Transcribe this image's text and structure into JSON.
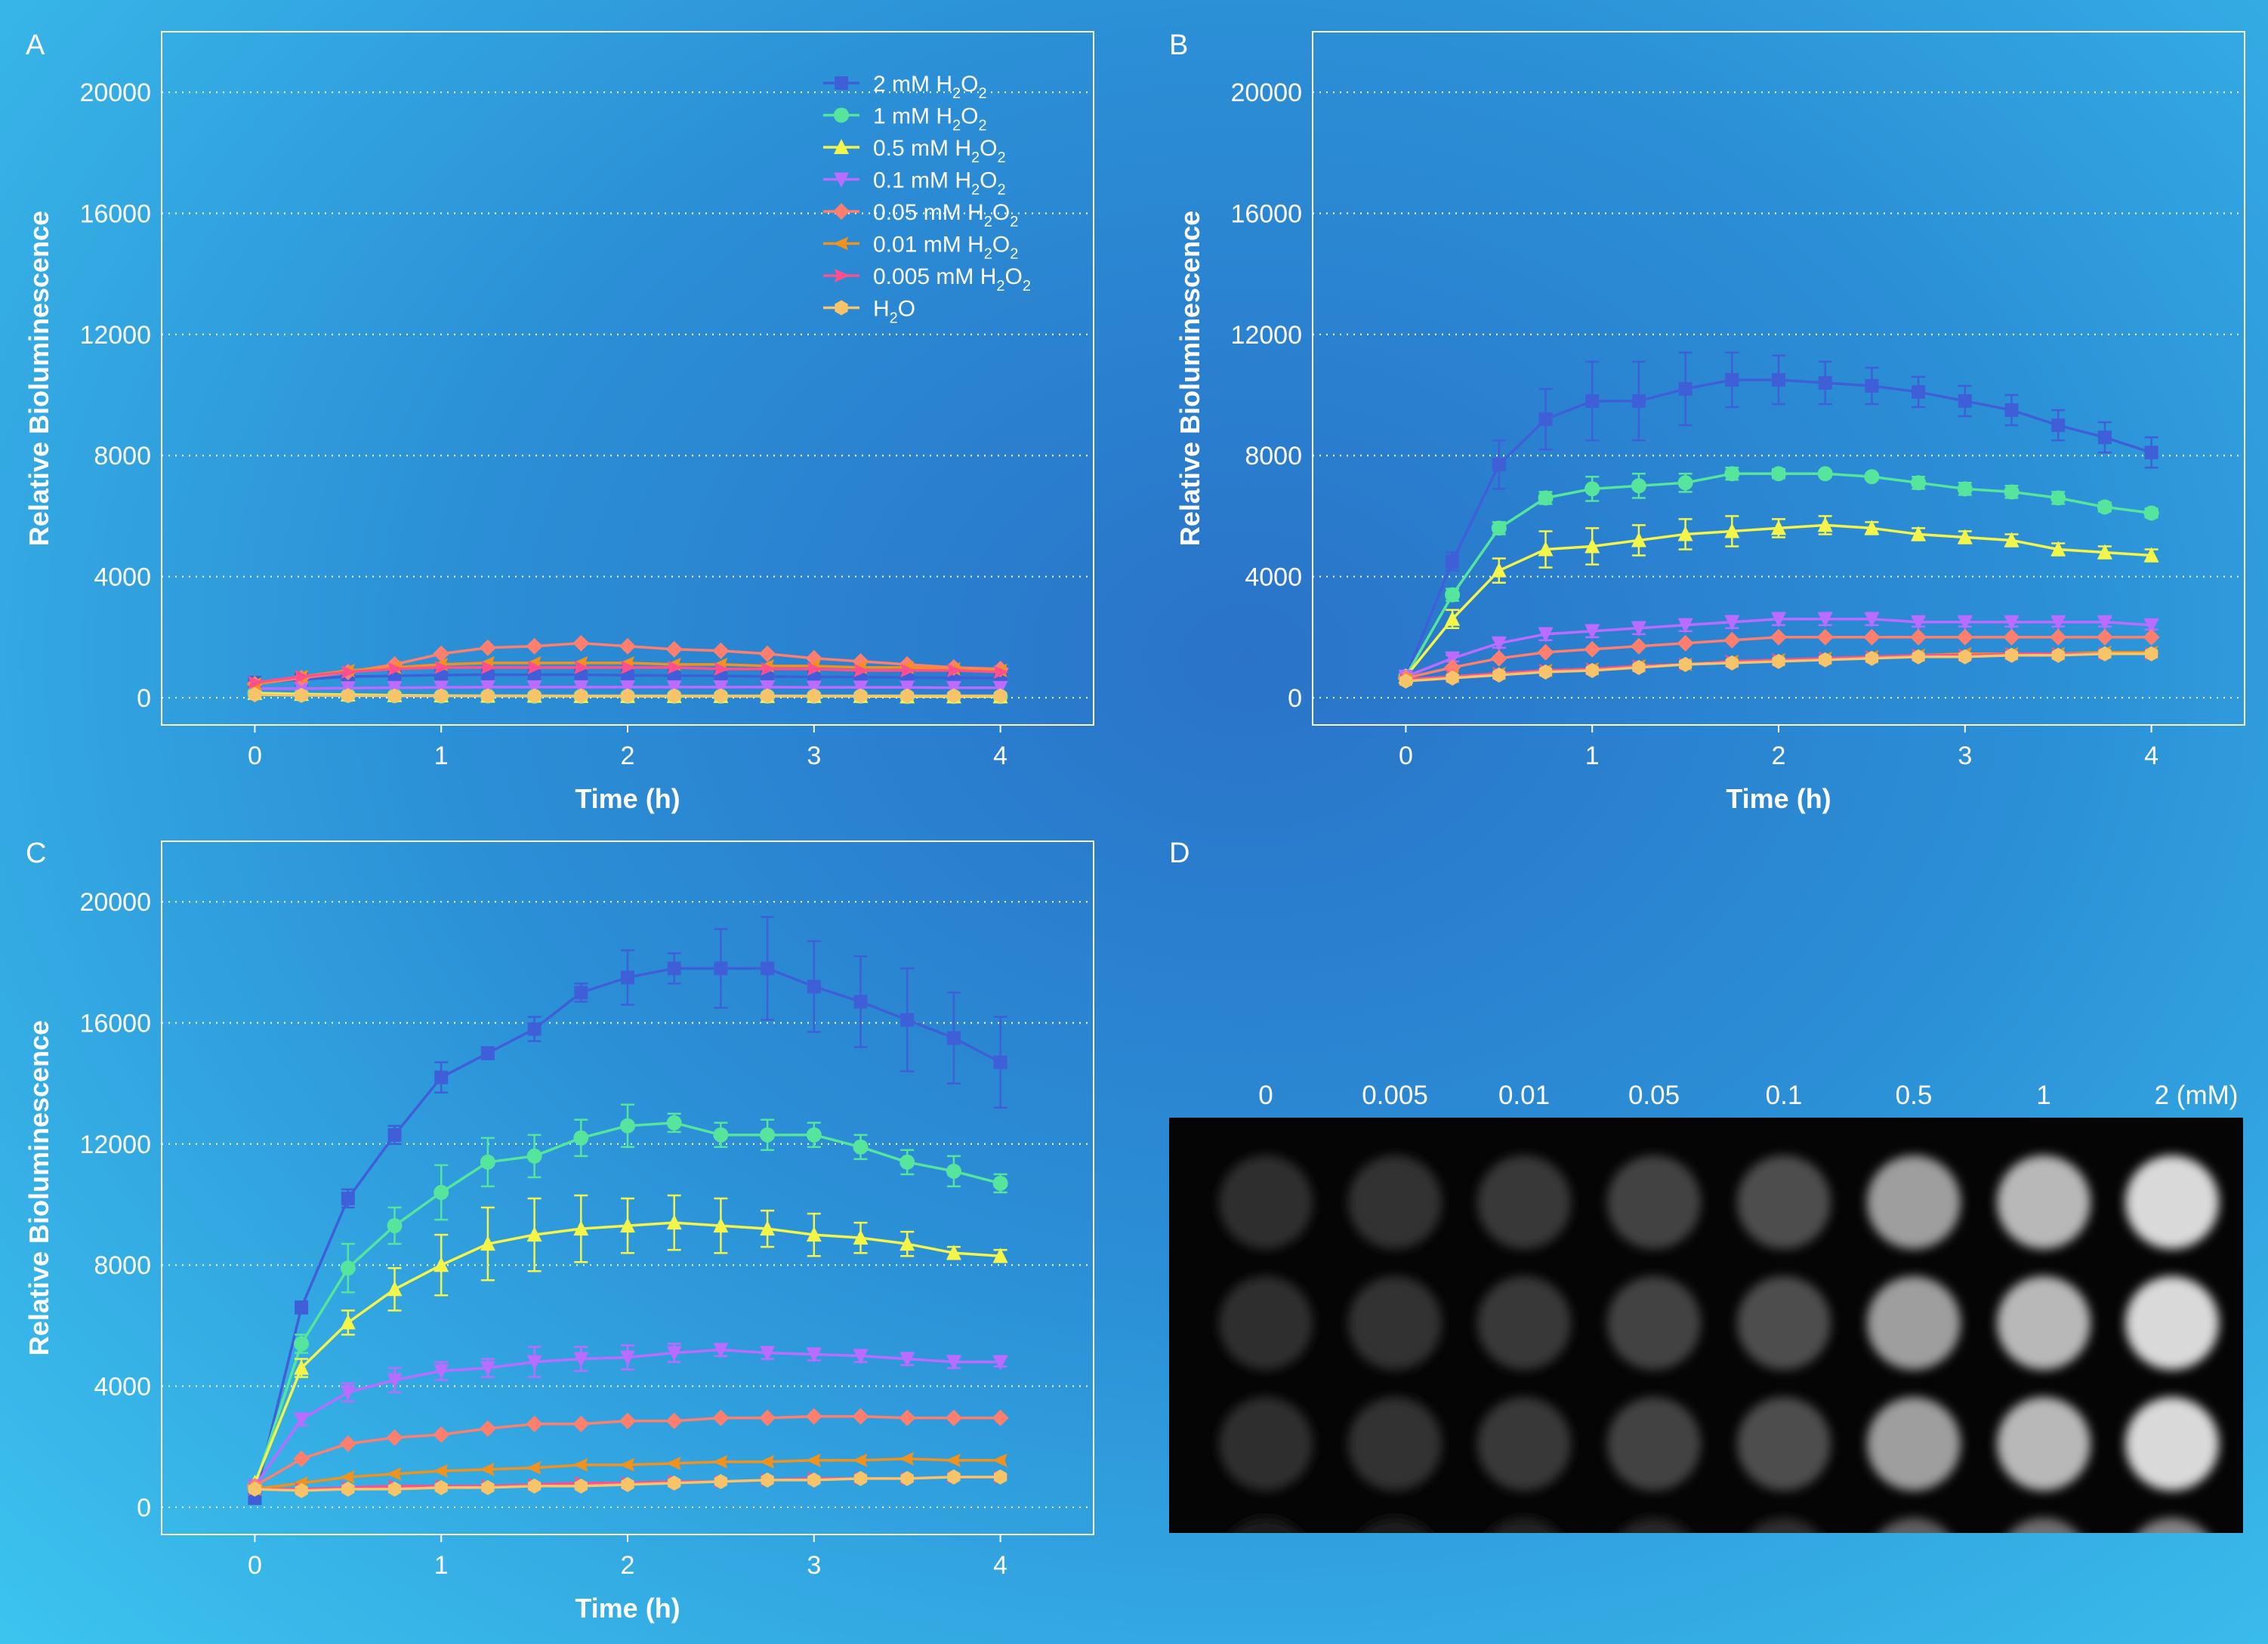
{
  "panel_letters": [
    "A",
    "B",
    "C",
    "D"
  ],
  "legend_prefixes": [
    "2 mM H",
    "1 mM H",
    "0.5 mM H",
    "0.1 mM H",
    "0.05 mM H",
    "0.01 mM H",
    "0.005 mM H",
    "H"
  ],
  "legend_sub": "2",
  "legend_mid": "O",
  "colors": [
    "#3f5fd8",
    "#56e59c",
    "#f3f54a",
    "#b96cff",
    "#ff7f6e",
    "#f1921e",
    "#ff4f8d",
    "#f7c46a"
  ],
  "markers": [
    "square",
    "circle",
    "triangle-up",
    "triangle-down",
    "diamond",
    "diamond-left",
    "diamond-right",
    "hexagon"
  ],
  "chart_data": [
    {
      "type": "line",
      "panel": "A",
      "xlabel": "Time (h)",
      "ylabel": "Relative Bioluminescence",
      "xlim": [
        -0.5,
        4.5
      ],
      "ylim": [
        -900,
        22000
      ],
      "xticks": [
        "0",
        "1",
        "2",
        "3",
        "4"
      ],
      "yticks": [
        "0",
        "4000",
        "8000",
        "12000",
        "16000",
        "20000"
      ],
      "grid": "horizontal dotted",
      "legend": "top-right",
      "x": [
        0,
        0.25,
        0.5,
        0.75,
        1,
        1.25,
        1.5,
        1.75,
        2,
        2.25,
        2.5,
        2.75,
        3,
        3.25,
        3.5,
        3.75,
        4
      ],
      "series": [
        {
          "name": "2 mM H2O2",
          "values": [
            500,
            600,
            700,
            720,
            750,
            760,
            760,
            760,
            740,
            730,
            720,
            700,
            690,
            680,
            670,
            660,
            650
          ],
          "errors": [
            0,
            0,
            0,
            0,
            0,
            0,
            0,
            0,
            0,
            0,
            0,
            0,
            0,
            0,
            0,
            0,
            0
          ]
        },
        {
          "name": "1 mM H2O2",
          "values": [
            150,
            100,
            80,
            70,
            60,
            60,
            50,
            50,
            50,
            50,
            50,
            50,
            50,
            50,
            40,
            40,
            40
          ],
          "errors": [
            0,
            0,
            0,
            0,
            0,
            0,
            0,
            0,
            0,
            0,
            0,
            0,
            0,
            0,
            0,
            0,
            0
          ]
        },
        {
          "name": "0.5 mM H2O2",
          "values": [
            150,
            120,
            100,
            80,
            70,
            60,
            60,
            50,
            50,
            50,
            50,
            50,
            50,
            50,
            40,
            40,
            40
          ],
          "errors": [
            0,
            0,
            0,
            0,
            0,
            0,
            0,
            0,
            0,
            0,
            0,
            0,
            0,
            0,
            0,
            0,
            0
          ]
        },
        {
          "name": "0.1 mM H2O2",
          "values": [
            300,
            300,
            320,
            330,
            340,
            350,
            350,
            350,
            350,
            350,
            350,
            350,
            340,
            340,
            340,
            330,
            330
          ],
          "errors": [
            0,
            0,
            0,
            0,
            0,
            0,
            0,
            0,
            0,
            0,
            0,
            0,
            0,
            0,
            0,
            0,
            0
          ]
        },
        {
          "name": "0.05 mM H2O2",
          "values": [
            450,
            650,
            850,
            1100,
            1450,
            1650,
            1700,
            1800,
            1700,
            1600,
            1550,
            1450,
            1300,
            1200,
            1100,
            1000,
            950
          ],
          "errors": [
            0,
            0,
            0,
            0,
            0,
            0,
            0,
            0,
            0,
            0,
            0,
            0,
            0,
            0,
            0,
            0,
            0
          ]
        },
        {
          "name": "0.01 mM H2O2",
          "values": [
            450,
            700,
            900,
            1000,
            1100,
            1150,
            1150,
            1150,
            1150,
            1100,
            1100,
            1050,
            1050,
            1000,
            1000,
            950,
            900
          ],
          "errors": [
            0,
            0,
            0,
            0,
            0,
            0,
            0,
            0,
            0,
            0,
            0,
            0,
            0,
            0,
            0,
            0,
            0
          ]
        },
        {
          "name": "0.005 mM H2O2",
          "values": [
            500,
            700,
            850,
            950,
            1000,
            1000,
            1000,
            1000,
            1000,
            1000,
            950,
            950,
            950,
            900,
            900,
            900,
            850
          ],
          "errors": [
            0,
            0,
            0,
            0,
            0,
            0,
            0,
            0,
            0,
            0,
            0,
            0,
            0,
            0,
            0,
            0,
            0
          ]
        },
        {
          "name": "H2O",
          "values": [
            100,
            80,
            70,
            60,
            60,
            60,
            60,
            60,
            60,
            60,
            60,
            60,
            60,
            60,
            60,
            60,
            60
          ],
          "errors": [
            0,
            0,
            0,
            0,
            0,
            0,
            0,
            0,
            0,
            0,
            0,
            0,
            0,
            0,
            0,
            0,
            0
          ]
        }
      ]
    },
    {
      "type": "line",
      "panel": "B",
      "xlabel": "Time (h)",
      "ylabel": "Relative Bioluminescence",
      "xlim": [
        -0.5,
        4.5
      ],
      "ylim": [
        -900,
        22000
      ],
      "xticks": [
        "0",
        "1",
        "2",
        "3",
        "4"
      ],
      "yticks": [
        "0",
        "4000",
        "8000",
        "12000",
        "16000",
        "20000"
      ],
      "grid": "horizontal dotted",
      "x": [
        0,
        0.25,
        0.5,
        0.75,
        1,
        1.25,
        1.5,
        1.75,
        2,
        2.25,
        2.5,
        2.75,
        3,
        3.25,
        3.5,
        3.75,
        4
      ],
      "series": [
        {
          "name": "2 mM H2O2",
          "values": [
            700,
            4500,
            7700,
            9200,
            9800,
            9800,
            10200,
            10500,
            10500,
            10400,
            10300,
            10100,
            9800,
            9500,
            9000,
            8600,
            8100
          ],
          "errors": [
            0,
            300,
            800,
            1000,
            1300,
            1300,
            1200,
            900,
            800,
            700,
            600,
            500,
            500,
            500,
            500,
            500,
            500
          ]
        },
        {
          "name": "1 mM H2O2",
          "values": [
            700,
            3400,
            5600,
            6600,
            6900,
            7000,
            7100,
            7400,
            7400,
            7400,
            7300,
            7100,
            6900,
            6800,
            6600,
            6300,
            6100
          ],
          "errors": [
            0,
            200,
            200,
            200,
            400,
            400,
            300,
            200,
            150,
            100,
            100,
            200,
            200,
            200,
            200,
            150,
            150
          ]
        },
        {
          "name": "0.5 mM H2O2",
          "values": [
            700,
            2600,
            4200,
            4900,
            5000,
            5200,
            5400,
            5500,
            5600,
            5700,
            5600,
            5400,
            5300,
            5200,
            4900,
            4800,
            4700
          ],
          "errors": [
            0,
            300,
            400,
            600,
            600,
            500,
            500,
            500,
            300,
            300,
            200,
            200,
            200,
            200,
            200,
            200,
            200
          ]
        },
        {
          "name": "0.1 mM H2O2",
          "values": [
            700,
            1300,
            1800,
            2100,
            2200,
            2300,
            2400,
            2500,
            2600,
            2600,
            2600,
            2500,
            2500,
            2500,
            2500,
            2500,
            2400
          ],
          "errors": [
            0,
            100,
            150,
            200,
            200,
            200,
            200,
            200,
            200,
            200,
            200,
            150,
            150,
            150,
            150,
            150,
            150
          ]
        },
        {
          "name": "0.05 mM H2O2",
          "values": [
            650,
            1000,
            1300,
            1500,
            1600,
            1700,
            1800,
            1900,
            2000,
            2000,
            2000,
            2000,
            2000,
            2000,
            2000,
            2000,
            2000
          ],
          "errors": [
            0,
            0,
            0,
            0,
            0,
            0,
            0,
            0,
            0,
            0,
            0,
            0,
            0,
            0,
            0,
            0,
            0
          ]
        },
        {
          "name": "0.01 mM H2O2",
          "values": [
            600,
            700,
            800,
            900,
            950,
            1050,
            1100,
            1200,
            1250,
            1300,
            1350,
            1400,
            1450,
            1450,
            1450,
            1500,
            1500
          ],
          "errors": [
            0,
            0,
            0,
            0,
            0,
            0,
            0,
            0,
            0,
            0,
            0,
            0,
            0,
            0,
            0,
            0,
            0
          ]
        },
        {
          "name": "0.005 mM H2O2",
          "values": [
            600,
            700,
            800,
            900,
            950,
            1050,
            1100,
            1200,
            1250,
            1300,
            1350,
            1400,
            1400,
            1450,
            1450,
            1450,
            1450
          ],
          "errors": [
            0,
            0,
            0,
            0,
            0,
            0,
            0,
            0,
            0,
            0,
            0,
            0,
            0,
            0,
            0,
            0,
            0
          ]
        },
        {
          "name": "H2O",
          "values": [
            550,
            650,
            750,
            850,
            900,
            1000,
            1100,
            1150,
            1200,
            1250,
            1300,
            1350,
            1350,
            1400,
            1400,
            1450,
            1450
          ],
          "errors": [
            0,
            0,
            0,
            0,
            0,
            0,
            0,
            0,
            0,
            0,
            0,
            0,
            0,
            0,
            0,
            0,
            0
          ]
        }
      ]
    },
    {
      "type": "line",
      "panel": "C",
      "xlabel": "Time (h)",
      "ylabel": "Relative Bioluminescence",
      "xlim": [
        -0.5,
        4.5
      ],
      "ylim": [
        -900,
        22000
      ],
      "xticks": [
        "0",
        "1",
        "2",
        "3",
        "4"
      ],
      "yticks": [
        "0",
        "4000",
        "8000",
        "12000",
        "16000",
        "20000"
      ],
      "grid": "horizontal dotted",
      "x": [
        0,
        0.25,
        0.5,
        0.75,
        1,
        1.25,
        1.5,
        1.75,
        2,
        2.25,
        2.5,
        2.75,
        3,
        3.25,
        3.5,
        3.75,
        4
      ],
      "series": [
        {
          "name": "2 mM H2O2",
          "values": [
            300,
            6600,
            10200,
            12300,
            14200,
            15000,
            15800,
            17000,
            17500,
            17800,
            17800,
            17800,
            17200,
            16700,
            16100,
            15500,
            14700
          ],
          "errors": [
            0,
            200,
            300,
            300,
            500,
            200,
            400,
            300,
            900,
            500,
            1300,
            1700,
            1500,
            1500,
            1700,
            1500,
            1500
          ]
        },
        {
          "name": "1 mM H2O2",
          "values": [
            700,
            5400,
            7900,
            9300,
            10400,
            11400,
            11600,
            12200,
            12600,
            12700,
            12300,
            12300,
            12300,
            11900,
            11400,
            11100,
            10700
          ],
          "errors": [
            0,
            300,
            800,
            600,
            900,
            800,
            700,
            600,
            700,
            300,
            400,
            500,
            400,
            400,
            400,
            500,
            300
          ]
        },
        {
          "name": "0.5 mM H2O2",
          "values": [
            800,
            4600,
            6100,
            7200,
            8000,
            8700,
            9000,
            9200,
            9300,
            9400,
            9300,
            9200,
            9000,
            8900,
            8700,
            8400,
            8300
          ],
          "errors": [
            0,
            300,
            400,
            700,
            1000,
            1200,
            1200,
            1100,
            900,
            900,
            900,
            600,
            700,
            500,
            400,
            200,
            200
          ]
        },
        {
          "name": "0.1 mM H2O2",
          "values": [
            700,
            2900,
            3800,
            4200,
            4500,
            4600,
            4800,
            4900,
            4950,
            5100,
            5200,
            5100,
            5050,
            5000,
            4900,
            4800,
            4800
          ],
          "errors": [
            0,
            200,
            300,
            400,
            300,
            300,
            500,
            400,
            400,
            300,
            200,
            200,
            200,
            200,
            200,
            200,
            150
          ]
        },
        {
          "name": "0.05 mM H2O2",
          "values": [
            700,
            1600,
            2100,
            2300,
            2400,
            2600,
            2750,
            2750,
            2850,
            2850,
            2950,
            2950,
            3000,
            3000,
            2950,
            2950,
            2950
          ],
          "errors": [
            0,
            0,
            0,
            0,
            0,
            0,
            0,
            0,
            0,
            0,
            0,
            0,
            0,
            0,
            0,
            0,
            0
          ]
        },
        {
          "name": "0.01 mM H2O2",
          "values": [
            600,
            800,
            1000,
            1100,
            1200,
            1250,
            1300,
            1400,
            1400,
            1450,
            1500,
            1500,
            1550,
            1550,
            1600,
            1550,
            1550
          ],
          "errors": [
            0,
            0,
            0,
            0,
            0,
            0,
            0,
            0,
            0,
            0,
            0,
            0,
            0,
            0,
            0,
            0,
            0
          ]
        },
        {
          "name": "0.005 mM H2O2",
          "values": [
            600,
            600,
            650,
            700,
            700,
            700,
            750,
            800,
            800,
            850,
            850,
            900,
            950,
            950,
            950,
            1000,
            1000
          ],
          "errors": [
            0,
            0,
            0,
            0,
            0,
            0,
            0,
            0,
            0,
            0,
            0,
            0,
            0,
            0,
            0,
            0,
            0
          ]
        },
        {
          "name": "H2O",
          "values": [
            600,
            550,
            600,
            600,
            650,
            650,
            700,
            700,
            750,
            800,
            850,
            900,
            900,
            950,
            950,
            1000,
            1000
          ],
          "errors": [
            0,
            0,
            0,
            0,
            0,
            0,
            0,
            0,
            0,
            0,
            0,
            0,
            0,
            0,
            0,
            0,
            0
          ]
        }
      ]
    }
  ],
  "panel_d": {
    "column_labels": [
      "0",
      "0.005",
      "0.01",
      "0.05",
      "0.1",
      "0.5",
      "1",
      "2 (mM)"
    ],
    "brightness": [
      0.18,
      0.2,
      0.22,
      0.26,
      0.3,
      0.62,
      0.72,
      0.85
    ]
  }
}
